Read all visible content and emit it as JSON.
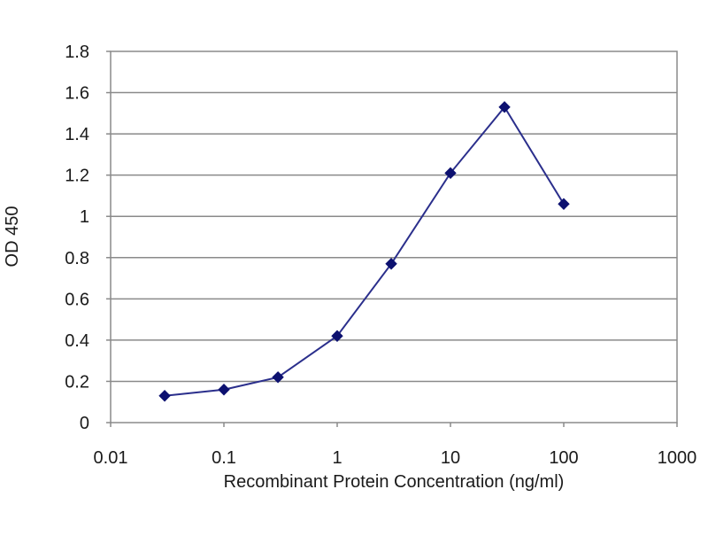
{
  "chart_data": {
    "type": "scatter",
    "title": "",
    "xlabel": "Recombinant Protein Concentration (ng/ml)",
    "ylabel": "OD 450",
    "x_scale": "log",
    "xlim": [
      0.01,
      1000
    ],
    "ylim": [
      0,
      1.8
    ],
    "x_ticks": [
      "0.01",
      "0.1",
      "1",
      "10",
      "100",
      "1000"
    ],
    "x_tick_values": [
      0.01,
      0.1,
      1,
      10,
      100,
      1000
    ],
    "y_ticks": [
      "0",
      "0.2",
      "0.4",
      "0.6",
      "0.8",
      "1",
      "1.2",
      "1.4",
      "1.6",
      "1.8"
    ],
    "y_tick_values": [
      0,
      0.2,
      0.4,
      0.6,
      0.8,
      1,
      1.2,
      1.4,
      1.6,
      1.8
    ],
    "grid": "horizontal",
    "legend": "none",
    "series": [
      {
        "name": "",
        "color": "#2b2f8c",
        "marker": "diamond",
        "line": true,
        "x": [
          0.03,
          0.1,
          0.3,
          1,
          3,
          10,
          30,
          100
        ],
        "y": [
          0.13,
          0.16,
          0.22,
          0.42,
          0.77,
          1.21,
          1.53,
          1.06
        ]
      }
    ]
  }
}
